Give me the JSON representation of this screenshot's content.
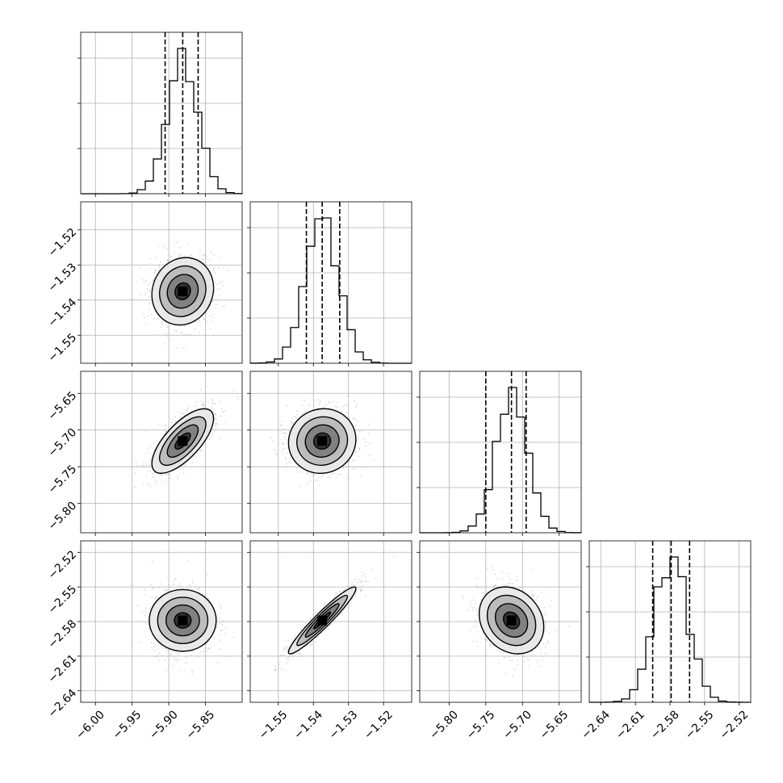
{
  "chart_data": {
    "type": "corner",
    "title": "",
    "grid": true,
    "parameters": [
      {
        "range": [
          -6.02,
          -5.8
        ],
        "ticks": [
          "-6.00",
          "-5.95",
          "-5.90",
          "-5.85"
        ],
        "median": -5.881,
        "quantiles": [
          -5.905,
          -5.881,
          -5.86
        ],
        "sigma": 0.021
      },
      {
        "range": [
          -1.558,
          -1.512
        ],
        "ticks": [
          "-1.55",
          "-1.54",
          "-1.53",
          "-1.52"
        ],
        "median": -1.5375,
        "quantiles": [
          -1.542,
          -1.5375,
          -1.5325
        ],
        "sigma": 0.0048
      },
      {
        "range": [
          -5.84,
          -5.62
        ],
        "ticks": [
          "-5.80",
          "-5.75",
          "-5.70",
          "-5.65"
        ],
        "median": -5.715,
        "quantiles": [
          -5.75,
          -5.715,
          -5.695
        ],
        "sigma": 0.022
      },
      {
        "range": [
          -2.65,
          -2.51
        ],
        "ticks": [
          "-2.64",
          "-2.61",
          "-2.58",
          "-2.55",
          "-2.52"
        ],
        "median": -2.579,
        "quantiles": [
          -2.595,
          -2.579,
          -2.563
        ],
        "sigma": 0.0145
      }
    ],
    "correlations": {
      "1-0": 0.1,
      "2-0": 0.7,
      "2-1": 0.05,
      "3-0": 0.0,
      "3-1": 0.95,
      "3-2": -0.2
    },
    "contour_levels_sigma": [
      0.5,
      1.0,
      1.5,
      2.0
    ],
    "colors": {
      "points": "#bdbdbd",
      "density": "#000000",
      "lines": "#000000"
    }
  }
}
